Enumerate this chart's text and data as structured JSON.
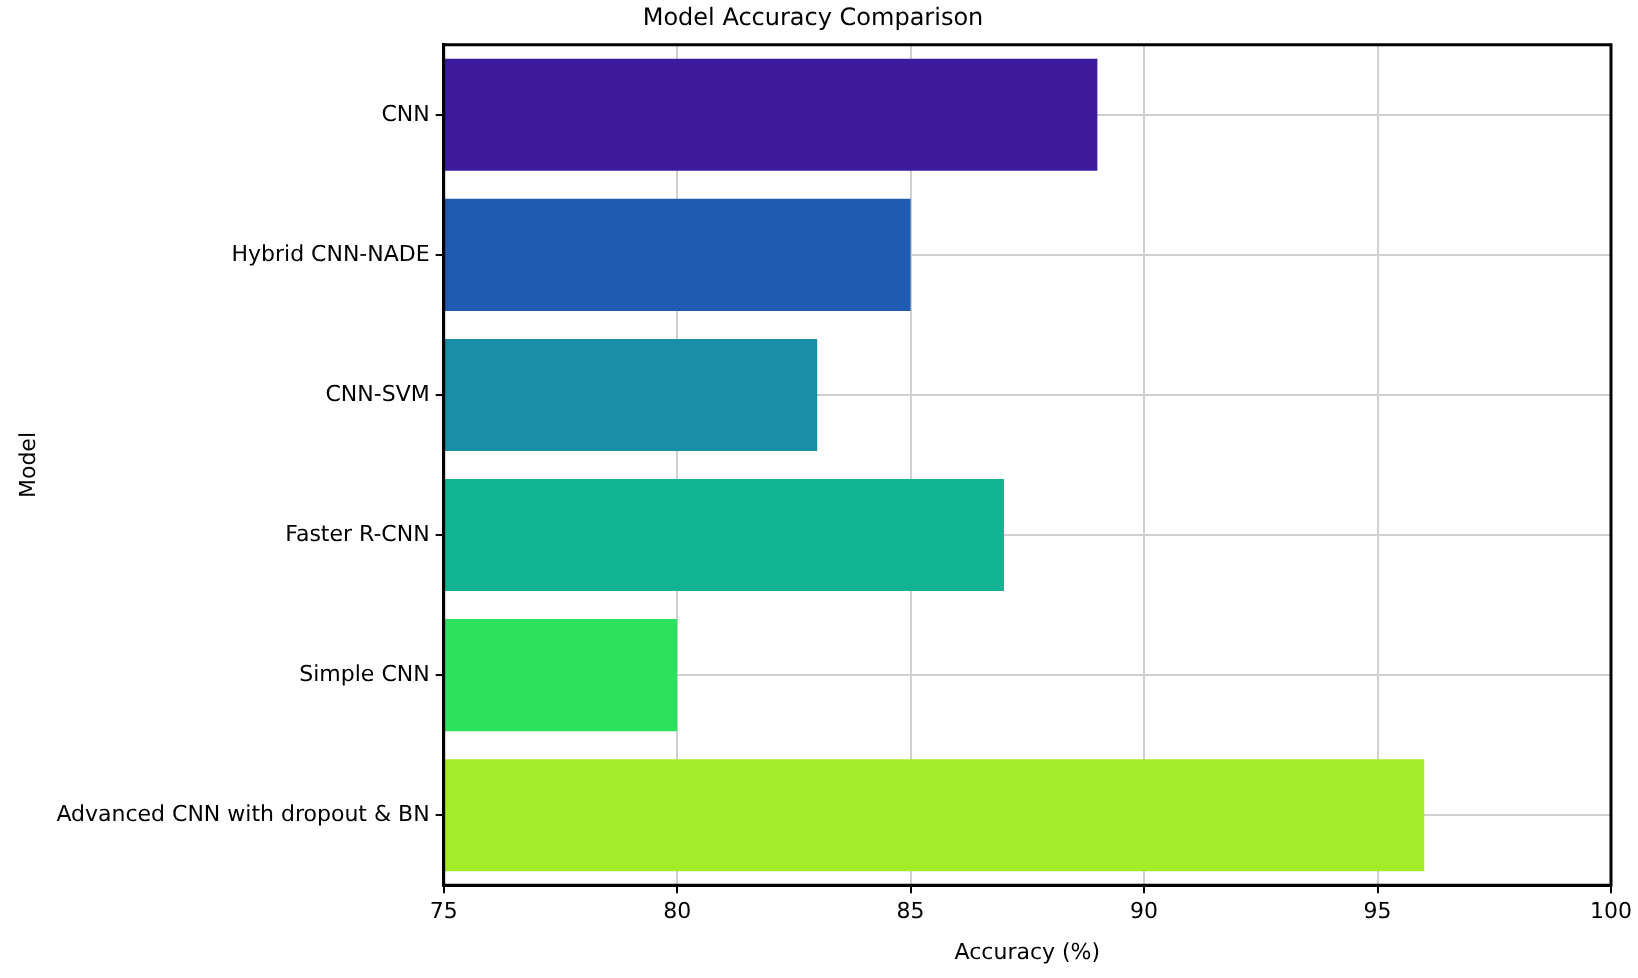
{
  "chart_data": {
    "type": "bar",
    "orientation": "horizontal",
    "title": "Model Accuracy Comparison",
    "xlabel": "Accuracy (%)",
    "ylabel": "Model",
    "categories": [
      "CNN",
      "Hybrid CNN-NADE",
      "CNN-SVM",
      "Faster R-CNN",
      "Simple CNN",
      "Advanced CNN with dropout & BN"
    ],
    "values": [
      89,
      85,
      83,
      87,
      80,
      96
    ],
    "colors": [
      "#3d1a9c",
      "#1f5bb0",
      "#1a8ea6",
      "#13b493",
      "#2de05e",
      "#a4ec2a"
    ],
    "xlim": [
      75,
      100
    ],
    "xticks": [
      75,
      80,
      85,
      90,
      95,
      100
    ],
    "grid": true
  }
}
